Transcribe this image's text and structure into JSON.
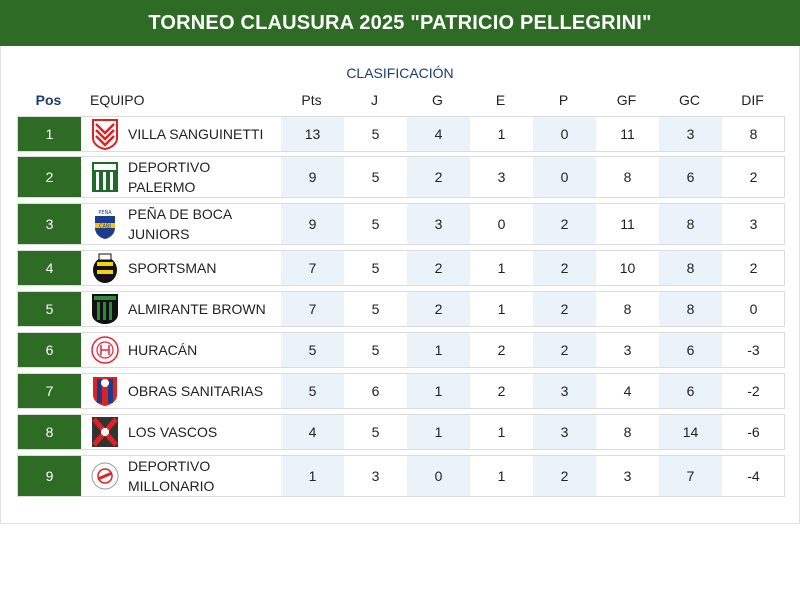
{
  "header": {
    "title": "TORNEO CLAUSURA 2025 \"PATRICIO PELLEGRINI\""
  },
  "table": {
    "subtitle": "CLASIFICACIÓN",
    "columns": {
      "pos": "Pos",
      "team": "EQUIPO",
      "pts": "Pts",
      "j": "J",
      "g": "G",
      "e": "E",
      "p": "P",
      "gf": "GF",
      "gc": "GC",
      "dif": "DIF"
    },
    "rows": [
      {
        "pos": "1",
        "team": "VILLA SANGUINETTI",
        "pts": "13",
        "j": "5",
        "g": "4",
        "e": "1",
        "p": "0",
        "gf": "11",
        "gc": "3",
        "dif": "8",
        "crest": "villa-sanguinetti-crest-icon"
      },
      {
        "pos": "2",
        "team": "DEPORTIVO PALERMO",
        "pts": "9",
        "j": "5",
        "g": "2",
        "e": "3",
        "p": "0",
        "gf": "8",
        "gc": "6",
        "dif": "2",
        "crest": "deportivo-palermo-crest-icon"
      },
      {
        "pos": "3",
        "team": "PEÑA DE BOCA JUNIORS",
        "pts": "9",
        "j": "5",
        "g": "3",
        "e": "0",
        "p": "2",
        "gf": "11",
        "gc": "8",
        "dif": "3",
        "crest": "pena-de-boca-crest-icon"
      },
      {
        "pos": "4",
        "team": "SPORTSMAN",
        "pts": "7",
        "j": "5",
        "g": "2",
        "e": "1",
        "p": "2",
        "gf": "10",
        "gc": "8",
        "dif": "2",
        "crest": "sportsman-crest-icon"
      },
      {
        "pos": "5",
        "team": "ALMIRANTE BROWN",
        "pts": "7",
        "j": "5",
        "g": "2",
        "e": "1",
        "p": "2",
        "gf": "8",
        "gc": "8",
        "dif": "0",
        "crest": "almirante-brown-crest-icon"
      },
      {
        "pos": "6",
        "team": "HURACÁN",
        "pts": "5",
        "j": "5",
        "g": "1",
        "e": "2",
        "p": "2",
        "gf": "3",
        "gc": "6",
        "dif": "-3",
        "crest": "huracan-crest-icon"
      },
      {
        "pos": "7",
        "team": "OBRAS SANITARIAS",
        "pts": "5",
        "j": "6",
        "g": "1",
        "e": "2",
        "p": "3",
        "gf": "4",
        "gc": "6",
        "dif": "-2",
        "crest": "obras-sanitarias-crest-icon"
      },
      {
        "pos": "8",
        "team": "LOS VASCOS",
        "pts": "4",
        "j": "5",
        "g": "1",
        "e": "1",
        "p": "3",
        "gf": "8",
        "gc": "14",
        "dif": "-6",
        "crest": "los-vascos-crest-icon"
      },
      {
        "pos": "9",
        "team": "DEPORTIVO MILLONARIO",
        "pts": "1",
        "j": "3",
        "g": "0",
        "e": "1",
        "p": "2",
        "gf": "3",
        "gc": "7",
        "dif": "-4",
        "crest": "deportivo-millonario-crest-icon"
      }
    ]
  },
  "colors": {
    "header_bg": "#2e6b25",
    "pos_bg": "#2e6b25",
    "stripe_bg": "#ebf3fa",
    "subtitle": "#1a3d6b"
  }
}
